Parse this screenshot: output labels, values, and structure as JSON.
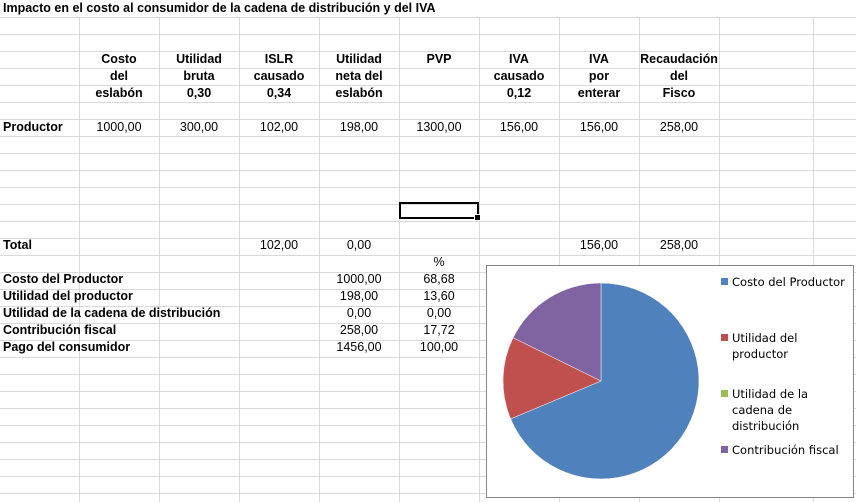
{
  "title": "Impacto en el costo al consumidor de la cadena de distribución y del IVA",
  "headers": [
    [
      "Costo",
      "del",
      "eslabón"
    ],
    [
      "Utilidad",
      "bruta",
      "0,30"
    ],
    [
      "ISLR",
      "causado",
      "0,34"
    ],
    [
      "Utilidad",
      "neta del",
      "eslabón"
    ],
    [
      "PVP",
      "",
      ""
    ],
    [
      "IVA",
      "causado",
      "0,12"
    ],
    [
      "IVA",
      "por",
      "enterar"
    ],
    [
      "Recaudación",
      "del",
      "Fisco"
    ]
  ],
  "productor": {
    "label": "Productor",
    "values": [
      "1000,00",
      "300,00",
      "102,00",
      "198,00",
      "1300,00",
      "156,00",
      "156,00",
      "258,00"
    ]
  },
  "total": {
    "label": "Total",
    "islr": "102,00",
    "utilidad_neta": "0,00",
    "iva_por_enterar": "156,00",
    "recaudacion": "258,00"
  },
  "percent_header": "%",
  "summary": [
    {
      "label": "Costo del Productor",
      "value": "1000,00",
      "percent": "68,68"
    },
    {
      "label": "Utilidad del productor",
      "value": "198,00",
      "percent": "13,60"
    },
    {
      "label": "Utilidad de la cadena de distribución",
      "value": "0,00",
      "percent": "0,00"
    },
    {
      "label": "Contribución fiscal",
      "value": "258,00",
      "percent": "17,72"
    },
    {
      "label": "Pago del consumidor",
      "value": "1456,00",
      "percent": "100,00"
    }
  ],
  "chart_data": {
    "type": "pie",
    "labels": [
      "Costo del Productor",
      "Utilidad del productor",
      "Utilidad de la cadena de distribución",
      "Contribución fiscal"
    ],
    "values": [
      1000,
      198,
      0,
      258
    ],
    "colors": [
      "#4F81BD",
      "#C0504D",
      "#9BBB59",
      "#8064A2"
    ],
    "legend_position": "right"
  }
}
